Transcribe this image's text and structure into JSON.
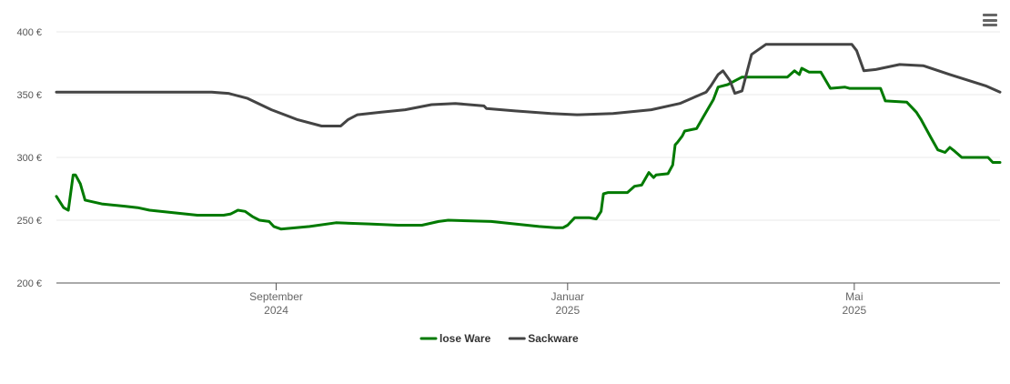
{
  "chart_data": {
    "type": "line",
    "y_ticks": [
      "400 €",
      "350 €",
      "300 €",
      "250 €",
      "200 €"
    ],
    "ylim": [
      200,
      400
    ],
    "xlim": [
      "2024-06-01",
      "2025-07-01"
    ],
    "x_ticks": [
      {
        "date": "2024-09-01",
        "month": "September",
        "year": "2024"
      },
      {
        "date": "2025-01-01",
        "month": "Januar",
        "year": "2025"
      },
      {
        "date": "2025-05-01",
        "month": "Mai",
        "year": "2025"
      }
    ],
    "grid": true,
    "legend_position": "bottom-center",
    "series": [
      {
        "name": "lose Ware",
        "color": "#007a00",
        "points": [
          [
            "2024-06-01",
            269
          ],
          [
            "2024-06-04",
            260
          ],
          [
            "2024-06-06",
            258
          ],
          [
            "2024-06-08",
            286
          ],
          [
            "2024-06-09",
            286
          ],
          [
            "2024-06-11",
            279
          ],
          [
            "2024-06-13",
            266
          ],
          [
            "2024-06-20",
            263
          ],
          [
            "2024-06-30",
            261
          ],
          [
            "2024-07-05",
            260
          ],
          [
            "2024-07-10",
            258
          ],
          [
            "2024-07-20",
            256
          ],
          [
            "2024-07-30",
            254
          ],
          [
            "2024-08-10",
            254
          ],
          [
            "2024-08-13",
            255
          ],
          [
            "2024-08-16",
            258
          ],
          [
            "2024-08-19",
            257
          ],
          [
            "2024-08-22",
            253
          ],
          [
            "2024-08-25",
            250
          ],
          [
            "2024-08-29",
            249
          ],
          [
            "2024-08-31",
            245
          ],
          [
            "2024-09-03",
            243
          ],
          [
            "2024-09-15",
            245
          ],
          [
            "2024-09-26",
            248
          ],
          [
            "2024-10-10",
            247
          ],
          [
            "2024-10-22",
            246
          ],
          [
            "2024-11-01",
            246
          ],
          [
            "2024-11-08",
            249
          ],
          [
            "2024-11-12",
            250
          ],
          [
            "2024-11-30",
            249
          ],
          [
            "2024-12-10",
            247
          ],
          [
            "2024-12-20",
            245
          ],
          [
            "2024-12-27",
            244
          ],
          [
            "2024-12-30",
            244
          ],
          [
            "2025-01-01",
            246
          ],
          [
            "2025-01-04",
            252
          ],
          [
            "2025-01-10",
            252
          ],
          [
            "2025-01-13",
            251
          ],
          [
            "2025-01-15",
            257
          ],
          [
            "2025-01-16",
            271
          ],
          [
            "2025-01-18",
            272
          ],
          [
            "2025-01-23",
            272
          ],
          [
            "2025-01-26",
            272
          ],
          [
            "2025-01-29",
            277
          ],
          [
            "2025-02-01",
            278
          ],
          [
            "2025-02-04",
            288
          ],
          [
            "2025-02-06",
            284
          ],
          [
            "2025-02-07",
            286
          ],
          [
            "2025-02-12",
            287
          ],
          [
            "2025-02-14",
            294
          ],
          [
            "2025-02-15",
            310
          ],
          [
            "2025-02-16",
            312
          ],
          [
            "2025-02-18",
            317
          ],
          [
            "2025-02-19",
            321
          ],
          [
            "2025-02-24",
            323
          ],
          [
            "2025-02-27",
            333
          ],
          [
            "2025-03-03",
            346
          ],
          [
            "2025-03-05",
            356
          ],
          [
            "2025-03-09",
            358
          ],
          [
            "2025-03-12",
            361
          ],
          [
            "2025-03-15",
            364
          ],
          [
            "2025-04-03",
            364
          ],
          [
            "2025-04-06",
            369
          ],
          [
            "2025-04-08",
            366
          ],
          [
            "2025-04-09",
            371
          ],
          [
            "2025-04-12",
            368
          ],
          [
            "2025-04-17",
            368
          ],
          [
            "2025-04-21",
            355
          ],
          [
            "2025-04-27",
            356
          ],
          [
            "2025-04-29",
            355
          ],
          [
            "2025-05-12",
            355
          ],
          [
            "2025-05-14",
            345
          ],
          [
            "2025-05-23",
            344
          ],
          [
            "2025-05-25",
            340
          ],
          [
            "2025-05-27",
            336
          ],
          [
            "2025-05-29",
            330
          ],
          [
            "2025-06-02",
            316
          ],
          [
            "2025-06-05",
            306
          ],
          [
            "2025-06-08",
            304
          ],
          [
            "2025-06-10",
            308
          ],
          [
            "2025-06-12",
            305
          ],
          [
            "2025-06-15",
            300
          ],
          [
            "2025-06-26",
            300
          ],
          [
            "2025-06-28",
            296
          ],
          [
            "2025-07-01",
            296
          ]
        ]
      },
      {
        "name": "Sackware",
        "color": "#444444",
        "points": [
          [
            "2024-06-01",
            352
          ],
          [
            "2024-07-01",
            352
          ],
          [
            "2024-07-26",
            352
          ],
          [
            "2024-08-05",
            352
          ],
          [
            "2024-08-12",
            351
          ],
          [
            "2024-08-20",
            347
          ],
          [
            "2024-08-30",
            338
          ],
          [
            "2024-09-10",
            330
          ],
          [
            "2024-09-20",
            325
          ],
          [
            "2024-09-28",
            325
          ],
          [
            "2024-10-01",
            330
          ],
          [
            "2024-10-05",
            334
          ],
          [
            "2024-10-15",
            336
          ],
          [
            "2024-10-25",
            338
          ],
          [
            "2024-11-05",
            342
          ],
          [
            "2024-11-15",
            343
          ],
          [
            "2024-11-27",
            341
          ],
          [
            "2024-11-28",
            339
          ],
          [
            "2024-12-10",
            337
          ],
          [
            "2024-12-25",
            335
          ],
          [
            "2025-01-05",
            334
          ],
          [
            "2025-01-20",
            335
          ],
          [
            "2025-02-05",
            338
          ],
          [
            "2025-02-17",
            343
          ],
          [
            "2025-02-28",
            352
          ],
          [
            "2025-03-02",
            357
          ],
          [
            "2025-03-05",
            366
          ],
          [
            "2025-03-07",
            369
          ],
          [
            "2025-03-10",
            361
          ],
          [
            "2025-03-12",
            351
          ],
          [
            "2025-03-15",
            353
          ],
          [
            "2025-03-19",
            382
          ],
          [
            "2025-03-25",
            390
          ],
          [
            "2025-04-15",
            390
          ],
          [
            "2025-04-30",
            390
          ],
          [
            "2025-05-02",
            385
          ],
          [
            "2025-05-05",
            369
          ],
          [
            "2025-05-10",
            370
          ],
          [
            "2025-05-20",
            374
          ],
          [
            "2025-05-30",
            373
          ],
          [
            "2025-06-10",
            366
          ],
          [
            "2025-06-25",
            357
          ],
          [
            "2025-07-01",
            352
          ]
        ]
      }
    ]
  },
  "menu_icon": "hamburger-menu-icon"
}
